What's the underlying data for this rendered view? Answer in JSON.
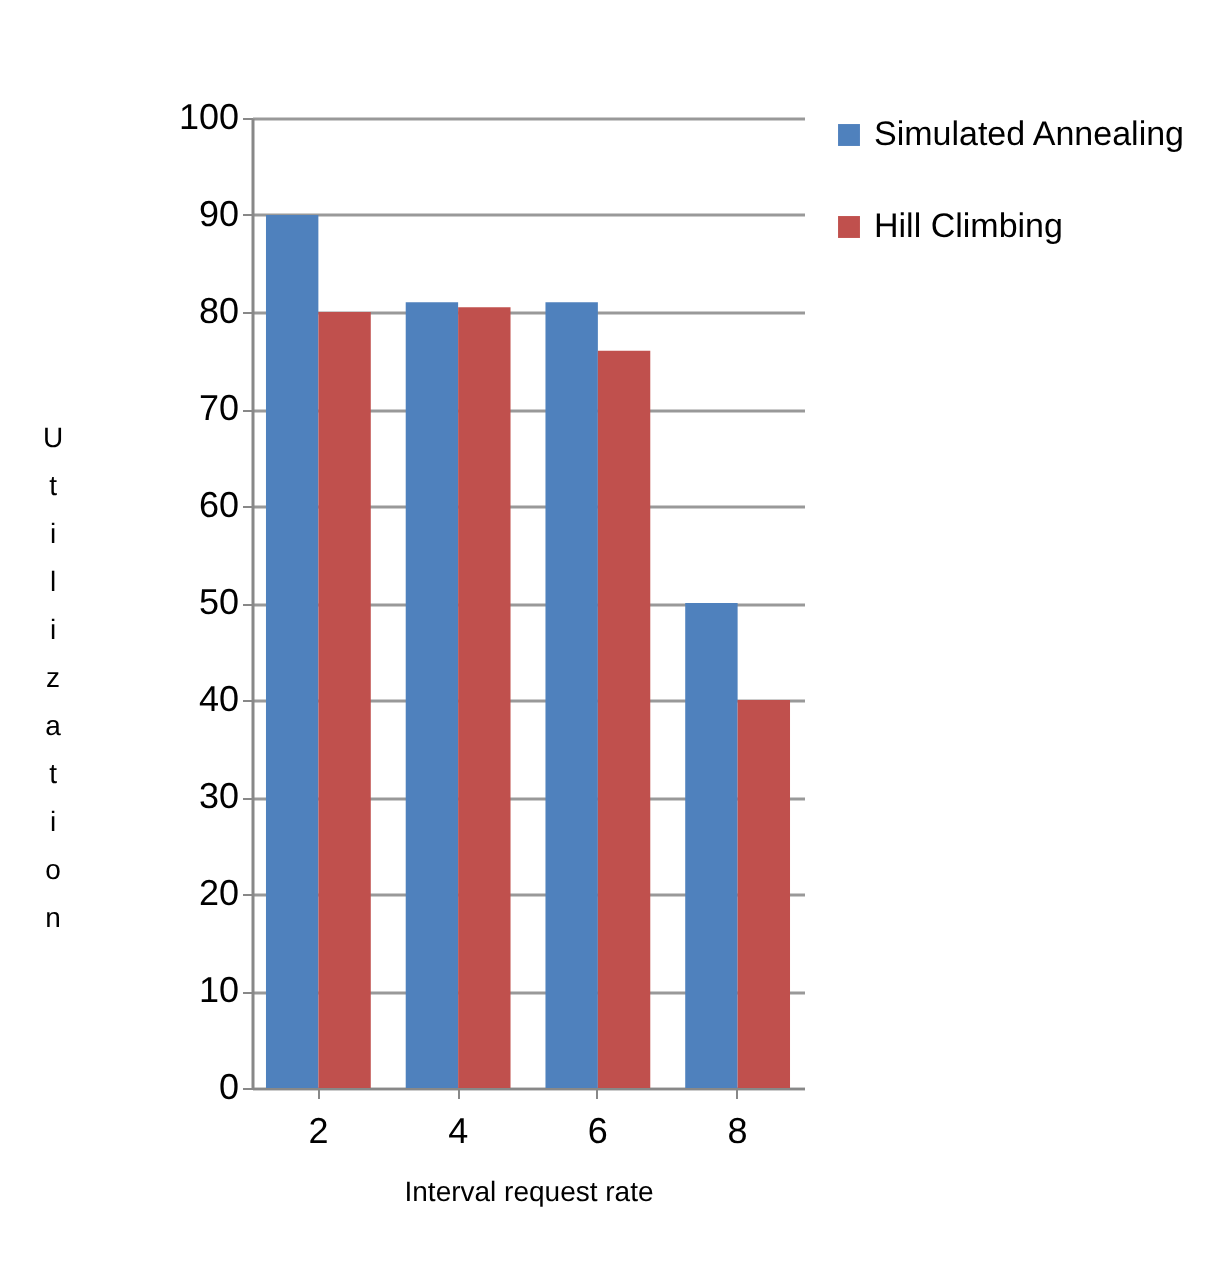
{
  "chart_data": {
    "type": "bar",
    "xlabel": "Interval request rate",
    "ylabel": "Utilization",
    "categories": [
      "2",
      "4",
      "6",
      "8"
    ],
    "series": [
      {
        "name": "Simulated Annealing",
        "color": "#4f81bd",
        "values": [
          90,
          81,
          81,
          50
        ]
      },
      {
        "name": "Hill Climbing",
        "color": "#c0504d",
        "values": [
          80,
          80.5,
          76,
          40
        ]
      }
    ],
    "ylim": [
      0,
      100
    ],
    "yticks": [
      0,
      10,
      20,
      30,
      40,
      50,
      60,
      70,
      80,
      90,
      100
    ],
    "grid": "y",
    "legend": "right"
  }
}
